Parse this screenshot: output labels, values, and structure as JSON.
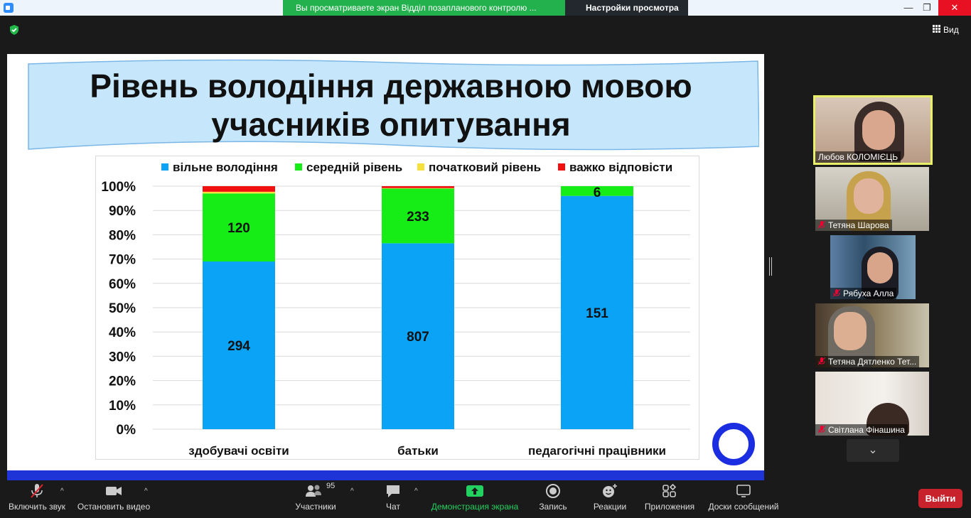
{
  "titlebar": {
    "share_banner": "Вы  просматриваете экран  Відділ  позапланового контролю  ...",
    "view_settings": "Настройки просмотра",
    "minimize": "—",
    "maximize": "❐",
    "close": "✕"
  },
  "topbar": {
    "view_label": "Вид"
  },
  "slide": {
    "title_line1": "Рівень володіння державною мовою",
    "title_line2": "учасників опитування"
  },
  "chart_data": {
    "type": "bar",
    "stacked": true,
    "percent_stacked": true,
    "categories": [
      "здобувачі освіти",
      "батьки",
      "педагогічні працівники"
    ],
    "series": [
      {
        "name": "вільне володіння",
        "color": "#0aa3f5",
        "percent": [
          69,
          76.5,
          96
        ],
        "labels": [
          "294",
          "807",
          "151"
        ]
      },
      {
        "name": "середній рівень",
        "color": "#16ec16",
        "percent": [
          28,
          22.5,
          4
        ],
        "labels": [
          "120",
          "233",
          "6"
        ]
      },
      {
        "name": "початковий рівень",
        "color": "#f5e03c",
        "percent": [
          0.7,
          0.2,
          0
        ],
        "labels": [
          "",
          "",
          ""
        ]
      },
      {
        "name": "важко відповісти",
        "color": "#f01010",
        "percent": [
          2.3,
          0.8,
          0
        ],
        "labels": [
          "",
          "",
          ""
        ]
      }
    ],
    "y_ticks": [
      "0%",
      "10%",
      "20%",
      "30%",
      "40%",
      "50%",
      "60%",
      "70%",
      "80%",
      "90%",
      "100%"
    ],
    "ylim": [
      0,
      100
    ],
    "grid": true,
    "legend_position": "top"
  },
  "participants": [
    {
      "name": "Любов КОЛОМІЄЦЬ",
      "muted": false,
      "active": true
    },
    {
      "name": "Тетяна Шарова",
      "muted": true
    },
    {
      "name": "Рябуха Алла",
      "muted": true
    },
    {
      "name": "Тетяна Дятленко Тет...",
      "muted": true
    },
    {
      "name": "Світлана Фінашина",
      "muted": true
    }
  ],
  "toolbar": {
    "unmute": "Включить звук",
    "stop_video": "Остановить видео",
    "participants": "Участники",
    "participants_count": "95",
    "chat": "Чат",
    "share_screen": "Демонстрация экрана",
    "record": "Запись",
    "reactions": "Реакции",
    "apps": "Приложения",
    "whiteboards": "Доски сообщений",
    "leave": "Выйти"
  }
}
